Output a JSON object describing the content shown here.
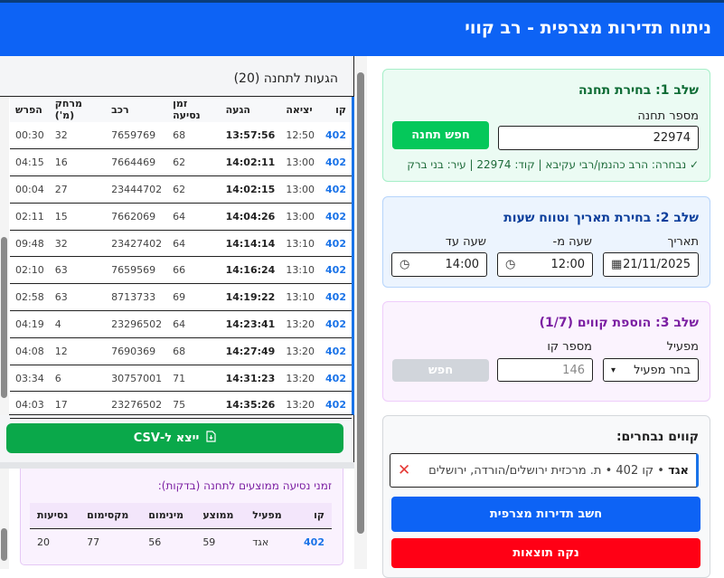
{
  "header": {
    "title": "ניתוח תדירות מצרפית - רב קווי"
  },
  "arrivals": {
    "title": "הגעות לתחנה (20)",
    "columns": [
      "קו",
      "יציאה",
      "הגעה",
      "זמן נסיעה",
      "רכב",
      "מרחק (מ')",
      "הפרש"
    ],
    "rows": [
      [
        "402",
        "12:50",
        "13:57:56",
        "68",
        "7659769",
        "32",
        "00:30"
      ],
      [
        "402",
        "13:00",
        "14:02:11",
        "62",
        "7664469",
        "16",
        "04:15"
      ],
      [
        "402",
        "13:00",
        "14:02:15",
        "62",
        "23444702",
        "27",
        "00:04"
      ],
      [
        "402",
        "13:00",
        "14:04:26",
        "64",
        "7662069",
        "15",
        "02:11"
      ],
      [
        "402",
        "13:10",
        "14:14:14",
        "64",
        "23427402",
        "32",
        "09:48"
      ],
      [
        "402",
        "13:10",
        "14:16:24",
        "66",
        "7659569",
        "63",
        "02:10"
      ],
      [
        "402",
        "13:10",
        "14:19:22",
        "69",
        "8713733",
        "63",
        "02:58"
      ],
      [
        "402",
        "13:20",
        "14:23:41",
        "64",
        "23296502",
        "4",
        "04:19"
      ],
      [
        "402",
        "13:20",
        "14:27:49",
        "68",
        "7690369",
        "12",
        "04:08"
      ],
      [
        "402",
        "13:20",
        "14:31:23",
        "71",
        "30757001",
        "6",
        "03:34"
      ],
      [
        "402",
        "13:20",
        "14:35:26",
        "75",
        "23276502",
        "17",
        "04:03"
      ]
    ],
    "export_label": "ייצא ל-CSV"
  },
  "averages": {
    "title": "זמני נסיעה ממוצעים לתחנה (בדקות):",
    "columns": [
      "קו",
      "מפעיל",
      "ממוצע",
      "מינימום",
      "מקסימום",
      "נסיעות"
    ],
    "rows": [
      [
        "402",
        "אגד",
        "59",
        "56",
        "77",
        "20"
      ]
    ]
  },
  "step1": {
    "title": "שלב 1: בחירת תחנה",
    "label": "מספר תחנה",
    "value": "22974",
    "button": "חפש תחנה",
    "selected": "✓ נבחרה: הרב כהנמן/רבי עקיבא | קוד: 22974 | עיר: בני ברק"
  },
  "step2": {
    "title": "שלב 2: בחירת תאריך וטווח שעות",
    "date_label": "תאריך",
    "date": "21/11/2025",
    "from_label": "שעה מ-",
    "from": "12:00",
    "to_label": "שעה עד",
    "to": "14:00"
  },
  "step3": {
    "title": "שלב 3: הוספת קווים (1/7)",
    "operator_label": "מפעיל",
    "operator_value": "בחר מפעיל",
    "line_label": "מספר קו",
    "line_placeholder": "146",
    "button": "חפש"
  },
  "step4": {
    "title": "קווים נבחרים:",
    "chip_operator": "אגד",
    "chip_text": " • קו 402 • ת. מרכזית ירושלים/הורדה, ירושלים",
    "calc": "חשב תדירות מצרפית",
    "clear": "נקה תוצאות"
  },
  "colors": {
    "header": "#0d63f5",
    "green": "#0aa84a",
    "blue": "#0d63f5",
    "red": "#ff0015",
    "line": "#1a73e8"
  }
}
